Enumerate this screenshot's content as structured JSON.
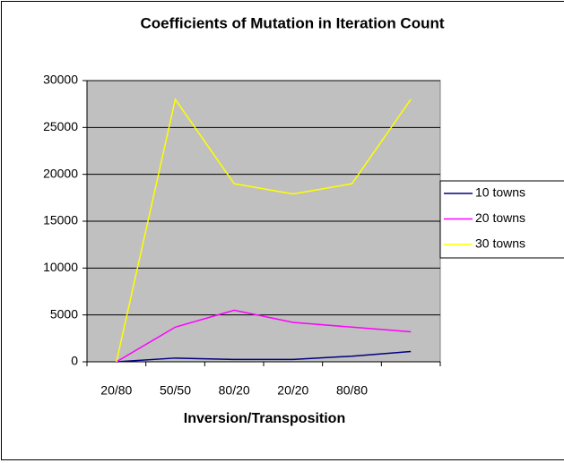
{
  "chart_data": {
    "type": "line",
    "title": "Coefficients of Mutation in Iteration Count",
    "x_label": "Inversion/Transposition",
    "categories": [
      "20/80",
      "50/50",
      "80/20",
      "20/20",
      "80/80",
      null
    ],
    "series": [
      {
        "name": "10 towns",
        "color": "#000080",
        "values": [
          0,
          400,
          250,
          250,
          600,
          1100
        ]
      },
      {
        "name": "20 towns",
        "color": "#ff00ff",
        "values": [
          0,
          3700,
          5500,
          4200,
          3700,
          3200
        ]
      },
      {
        "name": "30 towns",
        "color": "#ffff00",
        "values": [
          0,
          28000,
          19000,
          17900,
          19000,
          28000
        ]
      }
    ],
    "ylim": [
      0,
      30000
    ],
    "yticks": [
      0,
      5000,
      10000,
      15000,
      20000,
      25000,
      30000
    ],
    "grid": true,
    "legend": "right"
  }
}
